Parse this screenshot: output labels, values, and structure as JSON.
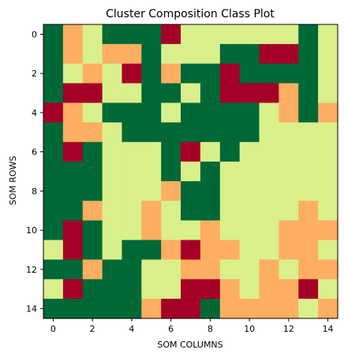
{
  "chart_data": {
    "type": "heatmap",
    "title": "Cluster Composition Class Plot",
    "xlabel": "SOM COLUMNS",
    "ylabel": "SOM ROWS",
    "xlim": [
      -0.5,
      14.5
    ],
    "ylim": [
      14.5,
      -0.5
    ],
    "xticks": [
      0,
      2,
      4,
      6,
      8,
      10,
      12,
      14
    ],
    "yticks": [
      0,
      2,
      4,
      6,
      8,
      10,
      12,
      14
    ],
    "grid": false,
    "classes": [
      {
        "id": 0,
        "color": "#006837"
      },
      {
        "id": 1,
        "color": "#a50026"
      },
      {
        "id": 2,
        "color": "#fdae61"
      },
      {
        "id": 3,
        "color": "#d9ef8b"
      }
    ],
    "grid_values": [
      [
        0,
        2,
        3,
        0,
        0,
        0,
        1,
        3,
        3,
        3,
        3,
        3,
        3,
        0,
        3
      ],
      [
        0,
        2,
        3,
        2,
        2,
        0,
        3,
        3,
        3,
        0,
        0,
        1,
        1,
        0,
        3
      ],
      [
        0,
        3,
        2,
        3,
        1,
        0,
        2,
        0,
        0,
        1,
        0,
        0,
        0,
        0,
        3
      ],
      [
        0,
        1,
        1,
        3,
        3,
        0,
        0,
        3,
        0,
        1,
        1,
        1,
        2,
        0,
        3
      ],
      [
        1,
        2,
        3,
        0,
        0,
        0,
        3,
        0,
        0,
        0,
        0,
        3,
        2,
        0,
        2
      ],
      [
        0,
        2,
        2,
        3,
        0,
        0,
        0,
        0,
        0,
        0,
        0,
        3,
        3,
        3,
        3
      ],
      [
        0,
        1,
        0,
        3,
        3,
        3,
        0,
        1,
        3,
        0,
        3,
        3,
        3,
        3,
        3
      ],
      [
        0,
        0,
        0,
        3,
        3,
        3,
        0,
        3,
        0,
        3,
        3,
        3,
        3,
        3,
        3
      ],
      [
        0,
        0,
        0,
        3,
        3,
        3,
        2,
        0,
        0,
        3,
        3,
        3,
        3,
        3,
        3
      ],
      [
        0,
        0,
        2,
        3,
        3,
        2,
        3,
        0,
        0,
        3,
        3,
        3,
        3,
        2,
        3
      ],
      [
        0,
        1,
        0,
        3,
        3,
        2,
        3,
        3,
        2,
        3,
        3,
        3,
        2,
        2,
        2
      ],
      [
        3,
        1,
        0,
        3,
        0,
        0,
        2,
        1,
        2,
        2,
        3,
        3,
        2,
        2,
        3
      ],
      [
        0,
        0,
        2,
        0,
        0,
        3,
        3,
        2,
        2,
        3,
        3,
        2,
        3,
        2,
        2
      ],
      [
        3,
        1,
        0,
        0,
        0,
        3,
        3,
        1,
        1,
        2,
        3,
        2,
        2,
        1,
        3
      ],
      [
        0,
        0,
        0,
        0,
        0,
        2,
        1,
        1,
        0,
        2,
        2,
        2,
        2,
        3,
        2
      ]
    ]
  }
}
